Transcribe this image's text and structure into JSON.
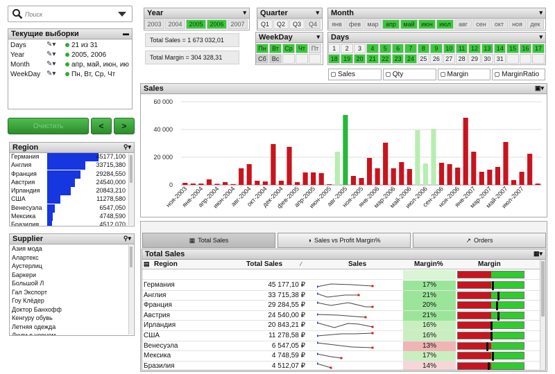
{
  "search": {
    "placeholder": "Поиск"
  },
  "current_selections": {
    "title": "Текущие выборки",
    "rows": [
      {
        "field": "Days",
        "value": "21 из 31"
      },
      {
        "field": "Year",
        "value": "2005, 2006"
      },
      {
        "field": "Month",
        "value": "апр, май, июн, ию"
      },
      {
        "field": "WeekDay",
        "value": "Пн, Вт, Ср, Чт"
      }
    ]
  },
  "nav": {
    "clear_label": "Очистить",
    "back_label": "<",
    "forward_label": ">"
  },
  "region_list": {
    "title": "Region",
    "items": [
      {
        "name": "Германия",
        "value": "45177,100",
        "frac": 1.0
      },
      {
        "name": "Англия",
        "value": "33715,380",
        "frac": 0.746
      },
      {
        "name": "Франция",
        "value": "29284,550",
        "frac": 0.648
      },
      {
        "name": "Австрия",
        "value": "24540,000",
        "frac": 0.543
      },
      {
        "name": "Ирландия",
        "value": "20843,210",
        "frac": 0.461
      },
      {
        "name": "США",
        "value": "11278,580",
        "frac": 0.25
      },
      {
        "name": "Венесуэла",
        "value": "6547,050",
        "frac": 0.145
      },
      {
        "name": "Мексика",
        "value": "4748,590",
        "frac": 0.105
      },
      {
        "name": "Бразилия",
        "value": "4512,070",
        "frac": 0.1
      }
    ]
  },
  "supplier_list": {
    "title": "Supplier",
    "items": [
      "Азия мода",
      "Алартекс",
      "Аустерлиц",
      "Баркери",
      "Большой Л",
      "Гал Экспорт",
      "Гоу Клёдер",
      "Доктор Банхофф",
      "Кенгуру обувь",
      "Летняя одежда",
      "Люди в черном"
    ]
  },
  "year": {
    "title": "Year",
    "items": [
      {
        "label": "2003",
        "state": "alt"
      },
      {
        "label": "2004",
        "state": "alt"
      },
      {
        "label": "2005",
        "state": "sel"
      },
      {
        "label": "2006",
        "state": "sel"
      },
      {
        "label": "2007",
        "state": "alt"
      }
    ]
  },
  "quarter": {
    "title": "Quarter",
    "items": [
      {
        "label": "Q1",
        "state": "norm"
      },
      {
        "label": "Q2",
        "state": "norm"
      },
      {
        "label": "Q3",
        "state": "norm"
      },
      {
        "label": "Q4",
        "state": "alt"
      }
    ]
  },
  "month": {
    "title": "Month",
    "items": [
      {
        "label": "янв",
        "state": "alt"
      },
      {
        "label": "фев",
        "state": "alt"
      },
      {
        "label": "мар",
        "state": "alt"
      },
      {
        "label": "апр",
        "state": "sel"
      },
      {
        "label": "май",
        "state": "sel"
      },
      {
        "label": "июн",
        "state": "sel"
      },
      {
        "label": "июл",
        "state": "sel"
      },
      {
        "label": "авг",
        "state": "alt"
      },
      {
        "label": "сен",
        "state": "alt"
      },
      {
        "label": "окт",
        "state": "alt"
      },
      {
        "label": "ноя",
        "state": "alt"
      },
      {
        "label": "дек",
        "state": "alt"
      }
    ]
  },
  "weekday": {
    "title": "WeekDay",
    "row1": [
      {
        "label": "Пн",
        "state": "sel"
      },
      {
        "label": "Вт",
        "state": "sel"
      },
      {
        "label": "Ср",
        "state": "sel"
      },
      {
        "label": "Чт",
        "state": "sel"
      },
      {
        "label": "Пт",
        "state": "alt"
      }
    ],
    "row2": [
      {
        "label": "Сб",
        "state": "grey"
      },
      {
        "label": "Вс",
        "state": "grey"
      },
      {
        "label": "",
        "state": "norm"
      },
      {
        "label": "",
        "state": "norm"
      },
      {
        "label": "",
        "state": "norm"
      }
    ]
  },
  "days": {
    "title": "Days",
    "row1": [
      {
        "label": "1",
        "state": "norm"
      },
      {
        "label": "2",
        "state": "norm"
      },
      {
        "label": "3",
        "state": "norm"
      },
      {
        "label": "4",
        "state": "sel"
      },
      {
        "label": "5",
        "state": "sel"
      },
      {
        "label": "6",
        "state": "sel"
      },
      {
        "label": "7",
        "state": "sel"
      },
      {
        "label": "8",
        "state": "sel"
      },
      {
        "label": "9",
        "state": "sel"
      },
      {
        "label": "10",
        "state": "sel"
      },
      {
        "label": "11",
        "state": "sel"
      },
      {
        "label": "12",
        "state": "sel"
      },
      {
        "label": "13",
        "state": "sel"
      },
      {
        "label": "14",
        "state": "sel"
      },
      {
        "label": "15",
        "state": "sel"
      },
      {
        "label": "16",
        "state": "sel"
      },
      {
        "label": "17",
        "state": "sel"
      }
    ],
    "row2": [
      {
        "label": "18",
        "state": "sel"
      },
      {
        "label": "19",
        "state": "sel"
      },
      {
        "label": "20",
        "state": "sel"
      },
      {
        "label": "21",
        "state": "sel"
      },
      {
        "label": "22",
        "state": "sel"
      },
      {
        "label": "23",
        "state": "sel"
      },
      {
        "label": "24",
        "state": "sel"
      },
      {
        "label": "25",
        "state": "norm"
      },
      {
        "label": "26",
        "state": "norm"
      },
      {
        "label": "27",
        "state": "norm"
      },
      {
        "label": "28",
        "state": "norm"
      },
      {
        "label": "29",
        "state": "norm"
      },
      {
        "label": "30",
        "state": "norm"
      },
      {
        "label": "31",
        "state": "norm"
      },
      {
        "label": "",
        "state": "norm"
      },
      {
        "label": "",
        "state": "norm"
      },
      {
        "label": "",
        "state": "norm"
      }
    ]
  },
  "totals": {
    "sales": "Total Sales = 1 673 032,01",
    "margin": "Total Margin = 304 328,31"
  },
  "checks": [
    {
      "label": "Sales"
    },
    {
      "label": "Qty"
    },
    {
      "label": "Margin"
    },
    {
      "label": "MarginRatio"
    }
  ],
  "sales_chart": {
    "title": "Sales"
  },
  "chart_data": {
    "type": "bar",
    "title": "Sales",
    "ylim": [
      0,
      60000
    ],
    "yticks": [
      "0",
      "20 000",
      "40 000",
      "60 000"
    ],
    "grid": true,
    "categories": [
      "ноя-2003",
      "дек-2003",
      "янв-2004",
      "фев-2004",
      "мар-2004",
      "апр-2004",
      "май-2004",
      "июн-2004",
      "июл-2004",
      "авг-2004",
      "сен-2004",
      "окт-2004",
      "ноя-2004",
      "дек-2004",
      "янв-2005",
      "фев-2005",
      "мар-2005",
      "апр-2005",
      "май-2005",
      "июн-2005",
      "июл-2005",
      "авг-2005",
      "сен-2005",
      "окт-2005",
      "ноя-2005",
      "дек-2005",
      "янв-2006",
      "фев-2006",
      "мар-2006",
      "апр-2006",
      "май-2006",
      "июн-2006",
      "июл-2006",
      "авг-2006",
      "сен-2006",
      "окт-2006",
      "ноя-2006",
      "дек-2006",
      "янв-2007",
      "фев-2007",
      "мар-2007",
      "апр-2007",
      "май-2007",
      "июн-2007",
      "июл-2007"
    ],
    "xtick_labels": [
      "ноя-2003",
      "",
      "янв-2004",
      "",
      "апр-2004",
      "",
      "июн-2004",
      "",
      "авг-2004",
      "",
      "окт-2004",
      "",
      "дек-2004",
      "",
      "фев-2005",
      "",
      "апр-2005",
      "",
      "июн-2005",
      "",
      "авг-2005",
      "",
      "ноя-2005",
      "",
      "янв-2006",
      "",
      "мар-2006",
      "",
      "май-2006",
      "",
      "июл-2006",
      "",
      "сен-2006",
      "",
      "ноя-2006",
      "",
      "янв-2007",
      "",
      "мар-2007",
      "",
      "май-2007",
      "",
      "июл-2007",
      "",
      ""
    ],
    "values": [
      1500,
      1000,
      1000,
      4000,
      800,
      2000,
      600,
      12000,
      15000,
      3000,
      2500,
      29500,
      3000,
      27500,
      2000,
      9000,
      9000,
      8500,
      500,
      24000,
      50500,
      6500,
      5000,
      19500,
      12000,
      30500,
      12000,
      16500,
      11500,
      39500,
      15500,
      40500,
      16000,
      15000,
      12500,
      48500,
      24000,
      9500,
      11000,
      13000,
      31000,
      3500,
      9500,
      22500,
      1000
    ],
    "highlight": [
      false,
      false,
      false,
      false,
      false,
      false,
      false,
      false,
      false,
      false,
      false,
      false,
      false,
      false,
      false,
      false,
      false,
      false,
      false,
      true,
      true,
      false,
      false,
      false,
      false,
      false,
      false,
      false,
      false,
      true,
      true,
      true,
      false,
      false,
      false,
      false,
      false,
      false,
      false,
      false,
      false,
      false,
      false,
      false,
      false
    ],
    "colors": {
      "normal": "#c8141e",
      "highlight_light": "#b7eeb0",
      "highlight_dark": "#27b83a"
    }
  },
  "tabs": [
    {
      "label": "Total Sales"
    },
    {
      "label": "Sales vs Profit Margin%"
    },
    {
      "label": "Orders"
    }
  ],
  "table": {
    "title": "Total Sales",
    "headers": {
      "region": "Region",
      "total_sales": "Total Sales",
      "sales": "Sales",
      "margin_pct": "Margin%",
      "margin": "Margin"
    },
    "rows": [
      {
        "region": "Германия",
        "total": "45 177,10 ₽",
        "margin_pct": "17%",
        "margin_frac": 0.36,
        "bg": "#9be59b"
      },
      {
        "region": "Англия",
        "total": "33 715,38 ₽",
        "margin_pct": "21%",
        "margin_frac": 0.44,
        "bg": "#9be59b"
      },
      {
        "region": "Франция",
        "total": "29 284,55 ₽",
        "margin_pct": "20%",
        "margin_frac": 0.42,
        "bg": "#9be59b"
      },
      {
        "region": "Австрия",
        "total": "24 540,00 ₽",
        "margin_pct": "21%",
        "margin_frac": 0.44,
        "bg": "#9be59b"
      },
      {
        "region": "Ирландия",
        "total": "20 843,21 ₽",
        "margin_pct": "16%",
        "margin_frac": 0.34,
        "bg": "#c9efc0"
      },
      {
        "region": "США",
        "total": "11 278,58 ₽",
        "margin_pct": "16%",
        "margin_frac": 0.34,
        "bg": "#c9efc0"
      },
      {
        "region": "Венесуэла",
        "total": "6 547,05 ₽",
        "margin_pct": "13%",
        "margin_frac": 0.28,
        "bg": "#f0b4b4"
      },
      {
        "region": "Мексика",
        "total": "4 748,59 ₽",
        "margin_pct": "17%",
        "margin_frac": 0.36,
        "bg": "#c9efc0"
      },
      {
        "region": "Бразилия",
        "total": "4 512,07 ₽",
        "margin_pct": "14%",
        "margin_frac": 0.3,
        "bg": "#f6d6d6"
      }
    ]
  }
}
